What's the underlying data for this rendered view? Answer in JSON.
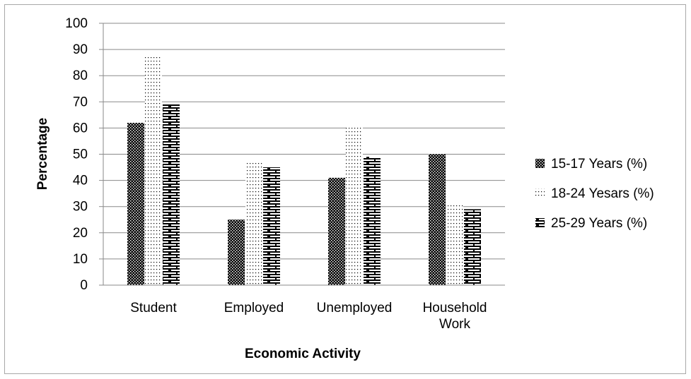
{
  "chart_data": {
    "type": "bar",
    "title": "",
    "xlabel": "Economic Activity",
    "ylabel": "Percentage",
    "ylim": [
      0,
      100
    ],
    "yticks": [
      0,
      10,
      20,
      30,
      40,
      50,
      60,
      70,
      80,
      90,
      100
    ],
    "grid": true,
    "legend_position": "right",
    "categories": [
      [
        "Student"
      ],
      [
        "Employed"
      ],
      [
        "Unemployed"
      ],
      [
        "Household",
        "Work"
      ]
    ],
    "series": [
      {
        "name": "15-17 Years (%)",
        "pattern": "checker",
        "values": [
          62,
          25,
          41,
          50
        ]
      },
      {
        "name": "18-24 Yesars (%)",
        "pattern": "dots",
        "values": [
          88,
          47,
          61,
          31
        ]
      },
      {
        "name": "25-29 Years (%)",
        "pattern": "brick",
        "values": [
          69,
          45,
          49,
          29
        ]
      }
    ]
  }
}
